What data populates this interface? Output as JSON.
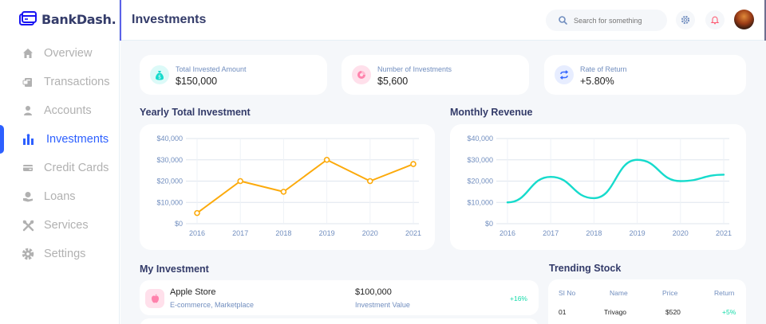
{
  "brand": {
    "name": "BankDash."
  },
  "sidebar": {
    "items": [
      {
        "label": "Overview",
        "icon": "home-icon",
        "active": false
      },
      {
        "label": "Transactions",
        "icon": "transfer-icon",
        "active": false
      },
      {
        "label": "Accounts",
        "icon": "user-icon",
        "active": false
      },
      {
        "label": "Investments",
        "icon": "bar-chart-icon",
        "active": true
      },
      {
        "label": "Credit Cards",
        "icon": "credit-card-icon",
        "active": false
      },
      {
        "label": "Loans",
        "icon": "loan-icon",
        "active": false
      },
      {
        "label": "Services",
        "icon": "tools-icon",
        "active": false
      },
      {
        "label": "Settings",
        "icon": "gear-icon",
        "active": false
      }
    ]
  },
  "header": {
    "title": "Investments",
    "search_placeholder": "Search for something"
  },
  "stats": [
    {
      "label": "Total Invested Amount",
      "value": "$150,000",
      "icon": "money-bag-icon",
      "color": "#16dbcc",
      "bg": "#dcfaf8"
    },
    {
      "label": "Number of Investments",
      "value": "$5,600",
      "icon": "pie-icon",
      "color": "#ff82ac",
      "bg": "#ffe0eb"
    },
    {
      "label": "Rate of Return",
      "value": "+5.80%",
      "icon": "repeat-icon",
      "color": "#396aff",
      "bg": "#e7edff"
    }
  ],
  "sections": {
    "yearly": "Yearly Total Investment",
    "monthly": "Monthly Revenue",
    "my_investment": "My Investment",
    "trending": "Trending Stock"
  },
  "chart_data": [
    {
      "type": "line",
      "title": "Yearly Total Investment",
      "x": [
        "2016",
        "2017",
        "2018",
        "2019",
        "2020",
        "2021"
      ],
      "series": [
        {
          "values": [
            5000,
            20000,
            15000,
            30000,
            20000,
            28000
          ],
          "color": "#fcaa0b"
        }
      ],
      "y_ticks": [
        "$0",
        "$10,000",
        "$20,000",
        "$30,000",
        "$40,000"
      ],
      "ylim": [
        0,
        40000
      ],
      "grid": true,
      "markers": true
    },
    {
      "type": "line",
      "title": "Monthly Revenue",
      "x": [
        "2016",
        "2017",
        "2018",
        "2019",
        "2020",
        "2021"
      ],
      "series": [
        {
          "values": [
            10000,
            22000,
            12000,
            30000,
            20000,
            23000
          ],
          "color": "#16dbcc"
        }
      ],
      "y_ticks": [
        "$0",
        "$10,000",
        "$20,000",
        "$30,000",
        "$40,000"
      ],
      "ylim": [
        0,
        40000
      ],
      "grid": true,
      "markers": false
    }
  ],
  "investments": [
    {
      "name": "Apple Store",
      "category": "E-commerce, Marketplace",
      "value": "$100,000",
      "value_label": "Investment Value",
      "return": "+16%",
      "icon": "apple-icon"
    }
  ],
  "trending": {
    "headers": [
      "SI No",
      "Name",
      "Price",
      "Return"
    ],
    "rows": [
      [
        "01",
        "Trivago",
        "$520",
        "+5%"
      ]
    ]
  },
  "colors": {
    "accent": "#2d60ff",
    "positive": "#16dbaa",
    "background": "#f5f7fa"
  }
}
